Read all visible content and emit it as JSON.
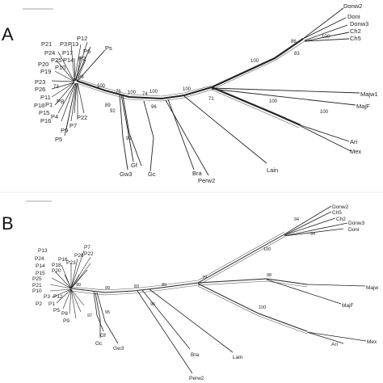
{
  "panels": [
    {
      "letter": "A",
      "taxa": [
        "P12",
        "P3",
        "P13",
        "P21",
        "P24",
        "P17",
        "P6",
        "P20",
        "P25",
        "P14",
        "P2",
        "P19",
        "P10",
        "P23",
        "P26",
        "P11",
        "P18",
        "P1",
        "P15",
        "P4",
        "P16",
        "P8",
        "P7",
        "P9",
        "P5",
        "P22",
        "Ps",
        "Gf",
        "Gw3",
        "Gc",
        "Bra",
        "Perw2",
        "Lain",
        "Majw1",
        "MajF",
        "Ari",
        "Mex",
        "Donw2",
        "Doni",
        "Donw3",
        "Ch2",
        "Ch5"
      ],
      "support": [
        "88",
        "100",
        "75",
        "100",
        "74",
        "100",
        "100",
        "71",
        "89",
        "92",
        "99",
        "96",
        "100",
        "100",
        "100",
        "86",
        "83",
        "100",
        "73"
      ]
    },
    {
      "letter": "B",
      "taxa": [
        "P13",
        "P7",
        "P22",
        "P26",
        "P24",
        "P16",
        "P14",
        "P18",
        "P23",
        "P15",
        "P20",
        "P25",
        "P21",
        "P10",
        "P3",
        "P12",
        "P2",
        "P1",
        "P5",
        "P8",
        "P9",
        "Gf",
        "Gc",
        "Gw3",
        "Bra",
        "Lain",
        "Perw2",
        "Majw",
        "MajF",
        "Ari",
        "Mex",
        "Donw2",
        "Ch5",
        "Ch2",
        "Donw3",
        "Doni"
      ],
      "support": [
        "99",
        "99",
        "83",
        "99",
        "79",
        "98",
        "100",
        "97",
        "95",
        "96",
        "100",
        "94",
        "94"
      ]
    }
  ]
}
